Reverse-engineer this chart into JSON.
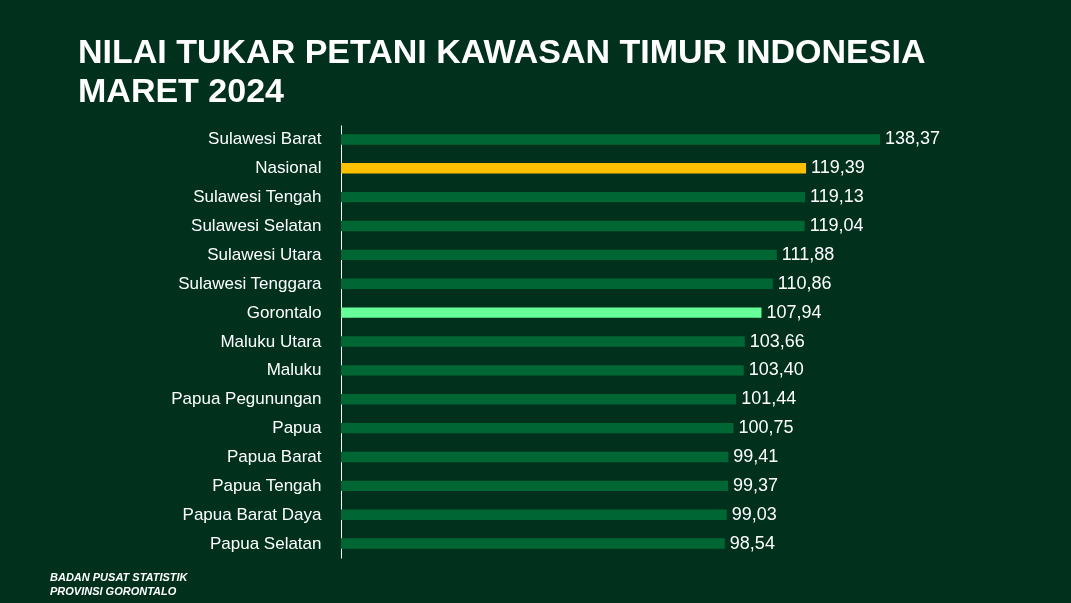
{
  "chart_data": {
    "type": "bar",
    "orientation": "horizontal",
    "title": "NILAI TUKAR PETANI KAWASAN TIMUR INDONESIA MARET 2024",
    "categories": [
      "Sulawesi Barat",
      "Nasional",
      "Sulawesi Tengah",
      "Sulawesi Selatan",
      "Sulawesi Utara",
      "Sulawesi Tenggara",
      "Gorontalo",
      "Maluku Utara",
      "Maluku",
      "Papua Pegunungan",
      "Papua",
      "Papua Barat",
      "Papua Tengah",
      "Papua Barat Daya",
      "Papua Selatan"
    ],
    "values": [
      138.37,
      119.39,
      119.13,
      119.04,
      111.88,
      110.86,
      107.94,
      103.66,
      103.4,
      101.44,
      100.75,
      99.41,
      99.37,
      99.03,
      98.54
    ],
    "value_labels": [
      "138,37",
      "119,39",
      "119,13",
      "119,04",
      "111,88",
      "110,86",
      "107,94",
      "103,66",
      "103,40",
      "101,44",
      "100,75",
      "99,41",
      "99,37",
      "99,03",
      "98,54"
    ],
    "colors": [
      "#006633",
      "#ffc000",
      "#006633",
      "#006633",
      "#006633",
      "#006633",
      "#66ff99",
      "#006633",
      "#006633",
      "#006633",
      "#006633",
      "#006633",
      "#006633",
      "#006633",
      "#006633"
    ],
    "tick_labels": "y",
    "annotations": [
      "BADAN PUSAT STATISTIK",
      "PROVINSI GORONTALO"
    ]
  }
}
